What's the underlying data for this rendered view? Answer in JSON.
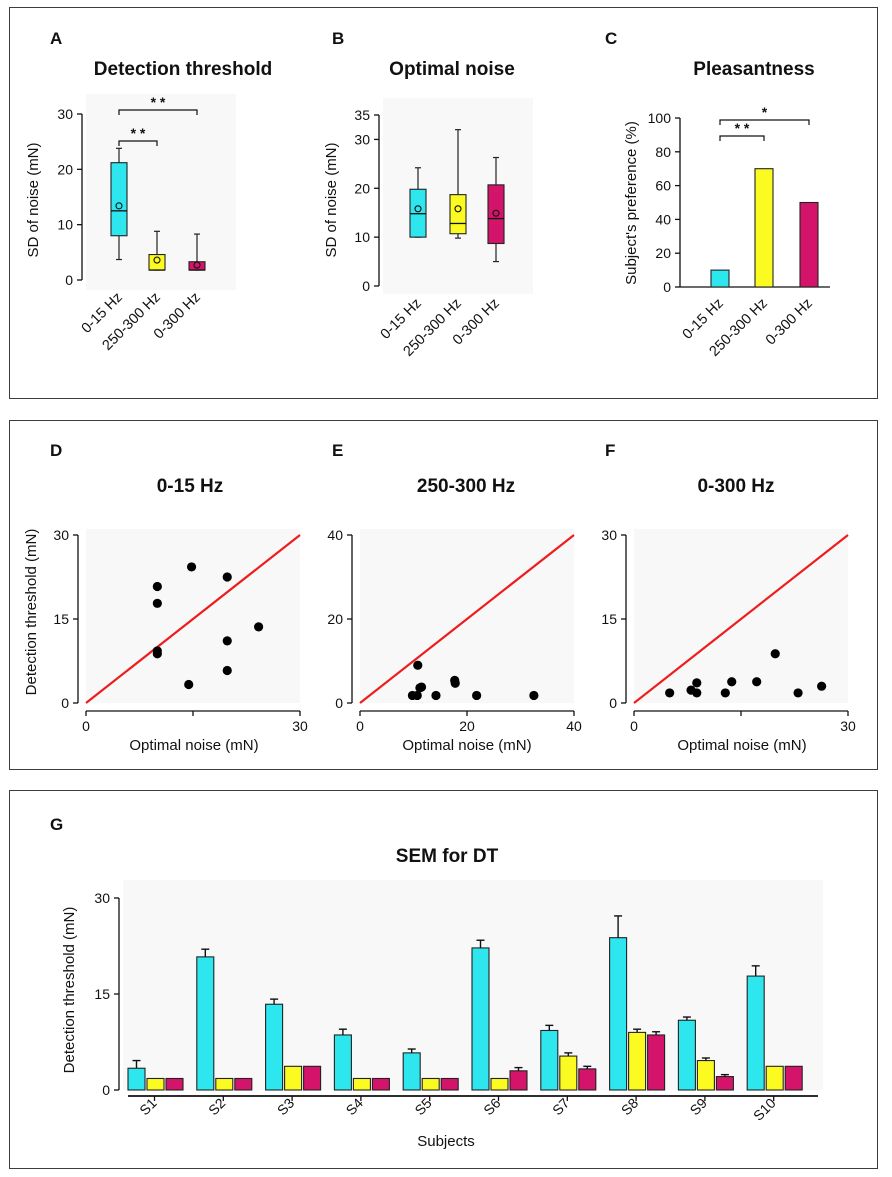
{
  "panel_letters": {
    "A": "A",
    "B": "B",
    "C": "C",
    "D": "D",
    "E": "E",
    "F": "F",
    "G": "G"
  },
  "colors": {
    "cyan": "#2ee6ee",
    "yellow": "#fbfb21",
    "magenta": "#d4146a",
    "red": "#ee1c1c",
    "black": "#000000"
  },
  "chart_data": [
    {
      "id": "A",
      "type": "box",
      "title": "Detection threshold",
      "xlabel": "",
      "ylabel": "SD of noise (mN)",
      "ylim": [
        0,
        30
      ],
      "yticks": [
        0,
        10,
        20,
        30
      ],
      "categories": [
        "0-15 Hz",
        "250-300 Hz",
        "0-300 Hz"
      ],
      "boxes": [
        {
          "name": "0-15 Hz",
          "whisker_low": 3.7,
          "q1": 8.0,
          "median": 12.5,
          "q3": 21.2,
          "whisker_high": 23.8,
          "mean": 13.4,
          "color": "#2ee6ee"
        },
        {
          "name": "250-300 Hz",
          "whisker_low": 1.8,
          "q1": 1.8,
          "median": 1.8,
          "q3": 4.6,
          "whisker_high": 8.8,
          "mean": 3.6,
          "color": "#fbfb21"
        },
        {
          "name": "0-300 Hz",
          "whisker_low": 1.8,
          "q1": 1.8,
          "median": 1.8,
          "q3": 3.3,
          "whisker_high": 8.3,
          "mean": 2.7,
          "color": "#d4146a"
        }
      ],
      "significance": [
        {
          "from": "0-15 Hz",
          "to": "250-300 Hz",
          "label": "* *"
        },
        {
          "from": "0-15 Hz",
          "to": "0-300 Hz",
          "label": "* *"
        }
      ]
    },
    {
      "id": "B",
      "type": "box",
      "title": "Optimal noise",
      "xlabel": "",
      "ylabel": "SD of noise  (mN)",
      "ylim": [
        0,
        35
      ],
      "yticks": [
        0,
        10,
        20,
        30,
        35
      ],
      "categories": [
        "0-15 Hz",
        "250-300 Hz",
        "0-300 Hz"
      ],
      "boxes": [
        {
          "name": "0-15 Hz",
          "whisker_low": 10.0,
          "q1": 10.0,
          "median": 14.8,
          "q3": 19.8,
          "whisker_high": 24.2,
          "mean": 15.8,
          "color": "#2ee6ee"
        },
        {
          "name": "250-300 Hz",
          "whisker_low": 9.8,
          "q1": 10.7,
          "median": 12.8,
          "q3": 18.7,
          "whisker_high": 32.0,
          "mean": 15.8,
          "color": "#fbfb21"
        },
        {
          "name": "0-300 Hz",
          "whisker_low": 5.0,
          "q1": 8.7,
          "median": 13.8,
          "q3": 20.7,
          "whisker_high": 26.3,
          "mean": 14.9,
          "color": "#d4146a"
        }
      ]
    },
    {
      "id": "C",
      "type": "bar",
      "title": "Pleasantness",
      "xlabel": "",
      "ylabel": "Subject's preference (%)",
      "ylim": [
        0,
        100
      ],
      "yticks": [
        0,
        20,
        40,
        60,
        80,
        100
      ],
      "categories": [
        "0-15 Hz",
        "250-300 Hz",
        "0-300 Hz"
      ],
      "values": [
        10,
        70,
        50
      ],
      "colors": [
        "#2ee6ee",
        "#fbfb21",
        "#d4146a"
      ],
      "significance": [
        {
          "from": "0-15 Hz",
          "to": "250-300 Hz",
          "label": "* *"
        },
        {
          "from": "0-15 Hz",
          "to": "0-300 Hz",
          "label": "*"
        }
      ]
    },
    {
      "id": "D",
      "type": "scatter",
      "title": "0-15 Hz",
      "xlabel": "Optimal noise (mN)",
      "ylabel": "Detection threshold (mN)",
      "xlim": [
        0,
        30
      ],
      "ylim": [
        0,
        30
      ],
      "xticks": [
        0,
        15,
        30
      ],
      "xtick_labels": [
        "0",
        "",
        "30"
      ],
      "yticks": [
        0,
        15,
        30
      ],
      "points": [
        [
          10,
          20.8
        ],
        [
          10,
          17.8
        ],
        [
          10,
          9.3
        ],
        [
          10,
          8.8
        ],
        [
          14.8,
          24.3
        ],
        [
          14.4,
          3.3
        ],
        [
          19.8,
          22.5
        ],
        [
          19.8,
          11.1
        ],
        [
          19.8,
          5.8
        ],
        [
          24.2,
          13.6
        ]
      ],
      "identity_line": true
    },
    {
      "id": "E",
      "type": "scatter",
      "title": "250-300 Hz",
      "xlabel": "Optimal noise (mN)",
      "ylabel": "",
      "xlim": [
        0,
        40
      ],
      "ylim": [
        0,
        40
      ],
      "xticks": [
        0,
        20,
        40
      ],
      "yticks": [
        0,
        20,
        40
      ],
      "points": [
        [
          9.8,
          1.8
        ],
        [
          10.7,
          1.8
        ],
        [
          10.8,
          9.0
        ],
        [
          11.5,
          3.8
        ],
        [
          11.2,
          3.6
        ],
        [
          14.2,
          1.8
        ],
        [
          17.7,
          5.4
        ],
        [
          17.8,
          4.7
        ],
        [
          21.8,
          1.8
        ],
        [
          32.5,
          1.8
        ]
      ],
      "identity_line": true
    },
    {
      "id": "F",
      "type": "scatter",
      "title": "0-300 Hz",
      "xlabel": "Optimal noise (mN)",
      "ylabel": "",
      "xlim": [
        0,
        30
      ],
      "ylim": [
        0,
        30
      ],
      "xticks": [
        0,
        15,
        30
      ],
      "xtick_labels": [
        "0",
        "",
        "30"
      ],
      "yticks": [
        0,
        15,
        30
      ],
      "points": [
        [
          5,
          1.8
        ],
        [
          8,
          2.3
        ],
        [
          8.8,
          1.8
        ],
        [
          8.8,
          3.6
        ],
        [
          12.8,
          1.8
        ],
        [
          13.7,
          3.8
        ],
        [
          17.2,
          3.8
        ],
        [
          19.8,
          8.8
        ],
        [
          23,
          1.8
        ],
        [
          26.3,
          3.0
        ]
      ],
      "identity_line": true
    },
    {
      "id": "G",
      "type": "bar",
      "title": "SEM for DT",
      "xlabel": "Subjects",
      "ylabel": "Detection threshold (mN)",
      "ylim": [
        0,
        30
      ],
      "yticks": [
        0,
        15,
        30
      ],
      "categories": [
        "S1",
        "S2",
        "S3",
        "S4",
        "S5",
        "S6",
        "S7",
        "S8",
        "S9",
        "S10"
      ],
      "series": [
        {
          "name": "0-15 Hz",
          "color": "#2ee6ee",
          "values": [
            3.4,
            20.8,
            13.4,
            8.6,
            5.8,
            22.2,
            9.3,
            23.8,
            10.9,
            17.8
          ],
          "errors": [
            1.2,
            1.2,
            0.8,
            0.9,
            0.6,
            1.2,
            0.8,
            3.4,
            0.5,
            1.6
          ]
        },
        {
          "name": "250-300 Hz",
          "color": "#fbfb21",
          "values": [
            1.8,
            1.8,
            3.7,
            1.8,
            1.8,
            1.8,
            5.3,
            9.0,
            4.6,
            3.7
          ],
          "errors": [
            0,
            0,
            0,
            0,
            0,
            0,
            0.5,
            0.5,
            0.4,
            0
          ]
        },
        {
          "name": "0-300 Hz",
          "color": "#d4146a",
          "values": [
            1.8,
            1.8,
            3.7,
            1.8,
            1.8,
            3.0,
            3.3,
            8.6,
            2.1,
            3.7
          ],
          "errors": [
            0,
            0,
            0,
            0,
            0,
            0.5,
            0.4,
            0.5,
            0.3,
            0
          ]
        }
      ]
    }
  ]
}
